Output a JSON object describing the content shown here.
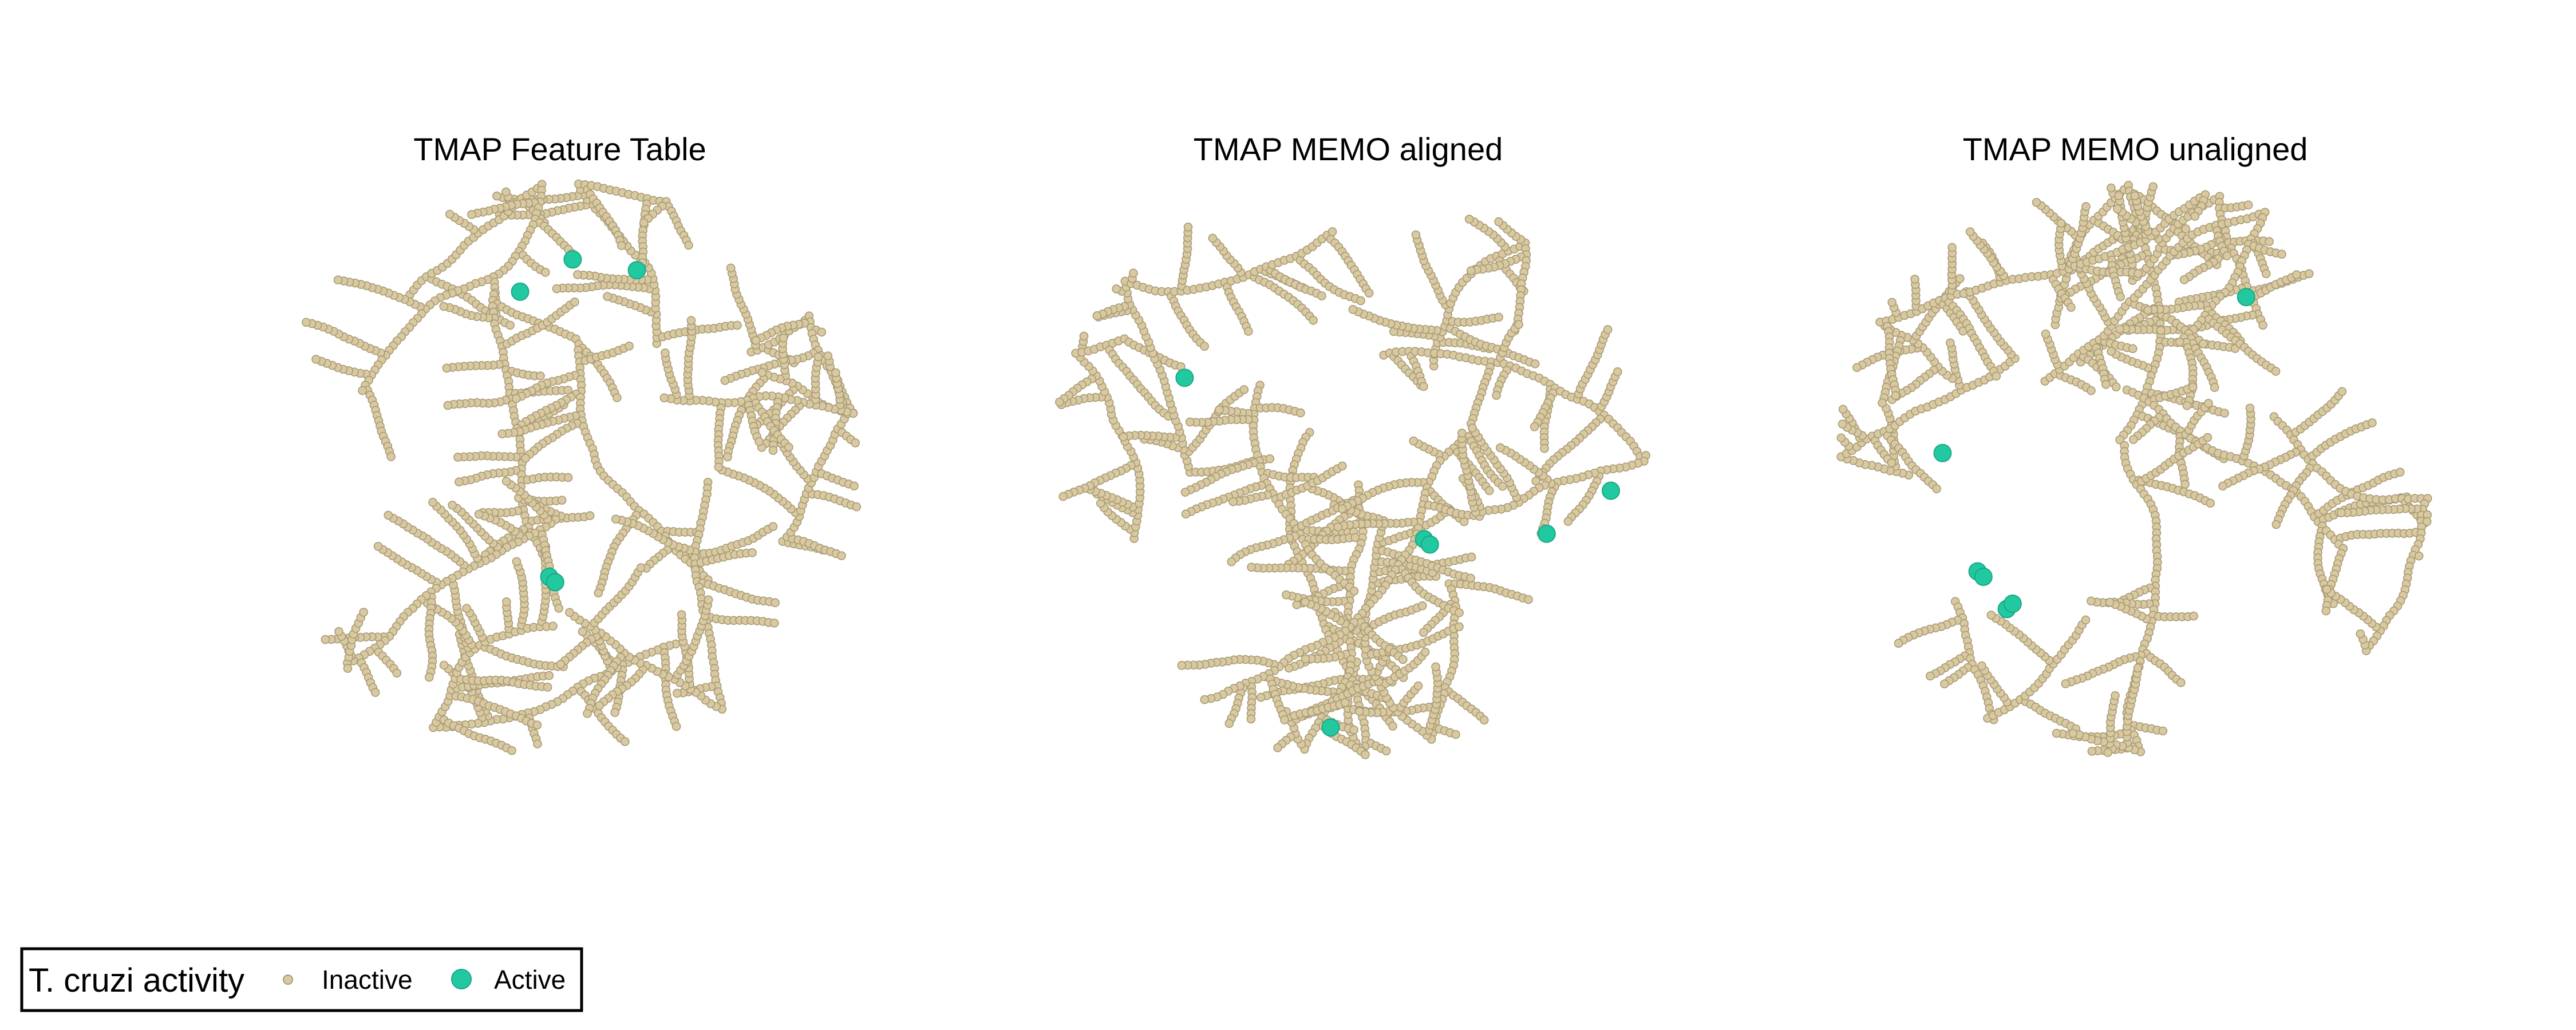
{
  "chart_data": [
    {
      "type": "scatter",
      "title": "TMAP Feature Table",
      "xlabel": "",
      "ylabel": "",
      "grid": false,
      "series": [
        {
          "name": "Inactive",
          "color": "#d8c9a0"
        },
        {
          "name": "Active",
          "color": "#22c9a0",
          "points": [
            [
              0.43,
              0.17
            ],
            [
              0.52,
              0.11
            ],
            [
              0.63,
              0.13
            ],
            [
              0.48,
              0.7
            ],
            [
              0.49,
              0.71
            ]
          ]
        }
      ]
    },
    {
      "type": "scatter",
      "title": "TMAP MEMO aligned",
      "xlabel": "",
      "ylabel": "",
      "grid": false,
      "series": [
        {
          "name": "Inactive",
          "color": "#d8c9a0"
        },
        {
          "name": "Active",
          "color": "#22c9a0",
          "points": [
            [
              0.22,
              0.33
            ],
            [
              0.47,
              0.98
            ],
            [
              0.63,
              0.63
            ],
            [
              0.64,
              0.64
            ],
            [
              0.84,
              0.62
            ],
            [
              0.95,
              0.54
            ]
          ]
        }
      ]
    },
    {
      "type": "scatter",
      "title": "TMAP MEMO unaligned",
      "xlabel": "",
      "ylabel": "",
      "grid": false,
      "series": [
        {
          "name": "Inactive",
          "color": "#d8c9a0"
        },
        {
          "name": "Active",
          "color": "#22c9a0",
          "points": [
            [
              0.69,
              0.18
            ],
            [
              0.17,
              0.47
            ],
            [
              0.23,
              0.69
            ],
            [
              0.24,
              0.7
            ],
            [
              0.28,
              0.76
            ],
            [
              0.29,
              0.75
            ]
          ]
        }
      ]
    }
  ],
  "legend": {
    "title": "T. cruzi activity",
    "items": [
      {
        "label": "Inactive",
        "color": "#d8c9a0"
      },
      {
        "label": "Active",
        "color": "#22c9a0"
      }
    ],
    "placement": "bottom-left"
  }
}
